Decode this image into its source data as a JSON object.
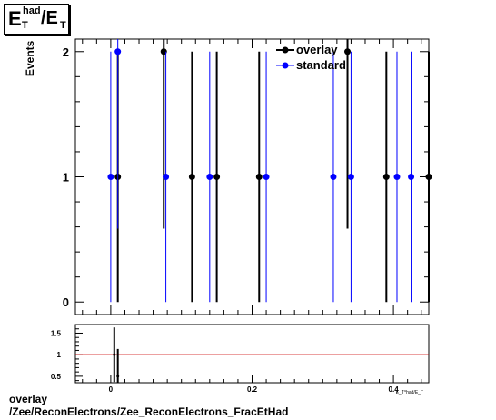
{
  "title_box": {
    "main": "E",
    "sup": "had",
    "sub": "T",
    "slash": "/E",
    "sub2": "T"
  },
  "footer": {
    "line1": "overlay",
    "line2": "/Zee/ReconElectrons/Zee_ReconElectrons_FracEtHad"
  },
  "colors": {
    "overlay": "#000000",
    "standard": "#0000ff",
    "ratio_line": "#cc0000"
  },
  "chart_data": [
    {
      "type": "scatter",
      "ylabel": "Events",
      "xlim": [
        -0.05,
        0.45
      ],
      "ylim": [
        -0.1,
        2.1
      ],
      "yticks": [
        "0",
        "1",
        "2"
      ],
      "legend_position": "top-center",
      "series": [
        {
          "name": "overlay",
          "color": "#000000",
          "points": [
            {
              "x": 0.01,
              "y": 1
            },
            {
              "x": 0.075,
              "y": 2
            },
            {
              "x": 0.115,
              "y": 1
            },
            {
              "x": 0.15,
              "y": 1
            },
            {
              "x": 0.21,
              "y": 1
            },
            {
              "x": 0.335,
              "y": 2
            },
            {
              "x": 0.39,
              "y": 1
            },
            {
              "x": 0.45,
              "y": 1
            }
          ]
        },
        {
          "name": "standard",
          "color": "#0000ff",
          "points": [
            {
              "x": 0.0,
              "y": 1
            },
            {
              "x": 0.01,
              "y": 2
            },
            {
              "x": 0.078,
              "y": 1
            },
            {
              "x": 0.14,
              "y": 1
            },
            {
              "x": 0.22,
              "y": 1
            },
            {
              "x": 0.315,
              "y": 1
            },
            {
              "x": 0.34,
              "y": 1
            },
            {
              "x": 0.405,
              "y": 1
            },
            {
              "x": 0.425,
              "y": 1
            }
          ]
        }
      ]
    },
    {
      "type": "scatter",
      "xlabel": "E_T^had/E_T",
      "xlim": [
        -0.05,
        0.45
      ],
      "ylim": [
        0.35,
        1.7
      ],
      "xticks": [
        "0",
        "0.2",
        "0.4"
      ],
      "yticks": [
        "0.5",
        "1",
        "1.5"
      ],
      "reference_line": 1,
      "points": [
        {
          "x": 0.005,
          "y": 1.0
        },
        {
          "x": 0.01,
          "y": 0.5
        }
      ]
    }
  ]
}
